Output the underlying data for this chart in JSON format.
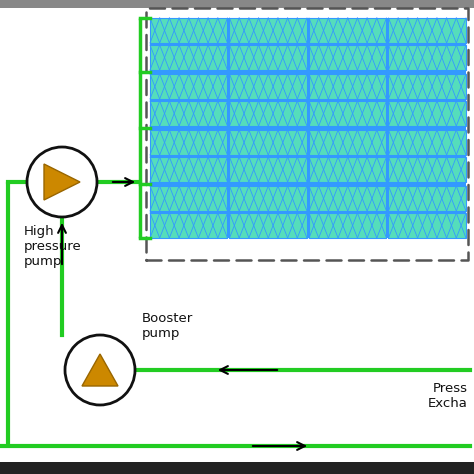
{
  "background_color": "#ffffff",
  "green_line_color": "#22cc22",
  "black_color": "#000000",
  "pump_circle_color": "#ffffff",
  "pump_border_color": "#111111",
  "pump_arrow_color": "#cc8800",
  "pump_arrow_edge": "#996600",
  "membrane_blue": "#3399ff",
  "membrane_green": "#55ddbb",
  "membrane_blue_bg": "#2299ee",
  "dashed_box_color": "#555555",
  "green_bracket_color": "#22bb22",
  "text_color": "#111111",
  "high_pressure_pump_label": "High\npressure\npump",
  "booster_pump_label": "Booster\npump",
  "pressure_exchanger_label": "Press\nExcha",
  "fig_width": 4.74,
  "fig_height": 4.74,
  "dpi": 100
}
